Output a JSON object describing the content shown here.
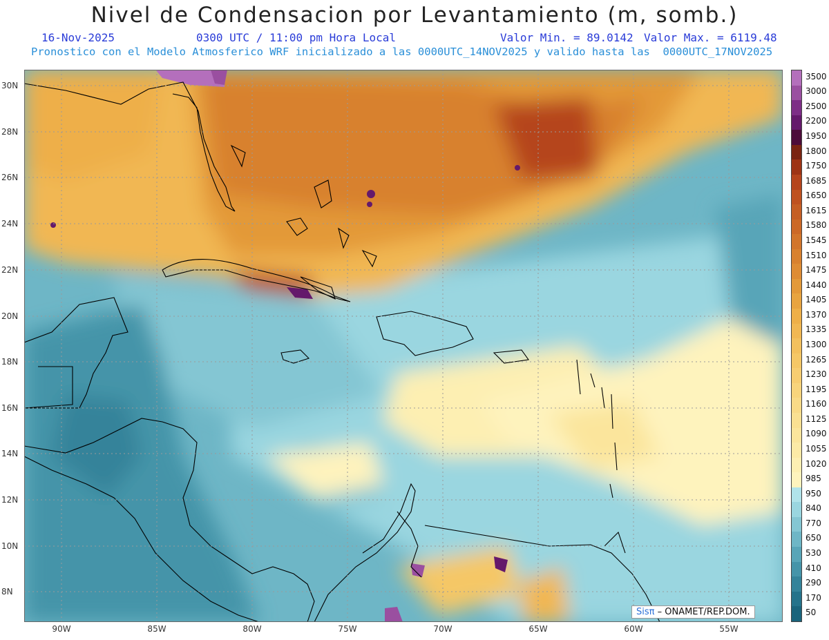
{
  "header": {
    "title": "Nivel de Condensacion por Levantamiento (m, somb.)",
    "date": "16-Nov-2025",
    "time": "0300 UTC / 11:00 pm Hora Local",
    "min_label": "Valor Min. = 89.0142",
    "max_label": "Valor Max. = 6119.48",
    "forecast_info": "Pronostico con el Modelo Atmosferico WRF inicializado a las 0000UTC_14NOV2025 y valido hasta las  0000UTC_17NOV2025"
  },
  "map": {
    "lon_labels": [
      "90W",
      "85W",
      "80W",
      "75W",
      "70W",
      "65W",
      "60W",
      "55W"
    ],
    "lat_labels": [
      "30N",
      "28N",
      "26N",
      "24N",
      "22N",
      "20N",
      "18N",
      "16N",
      "14N",
      "12N",
      "10N",
      "8N"
    ]
  },
  "colorbar": {
    "levels": [
      "3500",
      "3000",
      "2500",
      "2200",
      "1950",
      "1800",
      "1750",
      "1685",
      "1650",
      "1615",
      "1580",
      "1545",
      "1510",
      "1475",
      "1440",
      "1405",
      "1370",
      "1335",
      "1300",
      "1265",
      "1230",
      "1195",
      "1160",
      "1125",
      "1090",
      "1055",
      "1020",
      "985",
      "950",
      "840",
      "770",
      "650",
      "530",
      "410",
      "290",
      "170",
      "50"
    ],
    "colors": [
      "#b46fbc",
      "#9a4fa0",
      "#7d2e86",
      "#64196b",
      "#4c0c3a",
      "#7a2412",
      "#9e3415",
      "#b5441c",
      "#bf5220",
      "#c55e24",
      "#cc6927",
      "#d2752b",
      "#d8812f",
      "#de8c34",
      "#e39939",
      "#e8a440",
      "#eeaf48",
      "#f1b752",
      "#f3c05d",
      "#f5c766",
      "#f7cd71",
      "#f8d47c",
      "#f9da87",
      "#fae092",
      "#fbe59c",
      "#fceaa6",
      "#fdefb2",
      "#fef3bd",
      "#b0e3ea",
      "#9ad6e0",
      "#84c6d3",
      "#6eb6c6",
      "#58a5b8",
      "#4594a9",
      "#34839a",
      "#25738b",
      "#1a647c"
    ]
  },
  "credit": {
    "logo": "Sisπ",
    "text": " – ONAMET/REP.DOM."
  }
}
